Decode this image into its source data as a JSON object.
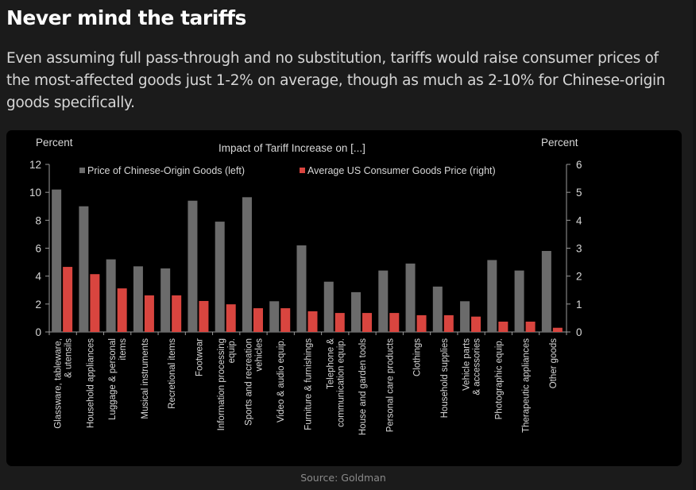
{
  "article": {
    "headline": "Never mind the tariffs",
    "dek": "Even assuming full pass-through and no substitution, tariffs would raise consumer prices of the most-affected goods just 1-2% on average, though as much as 2-10% for Chinese-origin goods specifically.",
    "source": "Source: Goldman"
  },
  "colors": {
    "page_bg": "#1b1b1b",
    "panel_bg": "#000000",
    "gray_series": "#6b6b6b",
    "red_series": "#d9453f",
    "axis_text": "#d8d8d8"
  },
  "chart_data": {
    "type": "bar",
    "title": "Impact of Tariff Increase on [...]",
    "ylabel_left": "Percent",
    "ylabel_right": "Percent",
    "ylim_left": [
      0,
      12
    ],
    "ylim_right": [
      0,
      6
    ],
    "yticks_left": [
      0,
      2,
      4,
      6,
      8,
      10,
      12
    ],
    "yticks_right": [
      0,
      1,
      2,
      3,
      4,
      5,
      6
    ],
    "grid": false,
    "legend_position": "top",
    "categories": [
      [
        "Glassware, tableware,",
        "& utensils"
      ],
      [
        "Household appliances"
      ],
      [
        "Luggage & personal",
        "items"
      ],
      [
        "Musical instruments"
      ],
      [
        "Recretional items"
      ],
      [
        "Footwear"
      ],
      [
        "Information processing",
        "equip."
      ],
      [
        "Sports and recreation",
        "vehicles"
      ],
      [
        "Video & audio equip."
      ],
      [
        "Furniture & furnishings"
      ],
      [
        "Telephone &",
        "communication equip."
      ],
      [
        "House and garden tools"
      ],
      [
        "Personal care products"
      ],
      [
        "Clothings"
      ],
      [
        "Household supplies"
      ],
      [
        "Vehicle parts",
        "& accessories"
      ],
      [
        "Photographic equip."
      ],
      [
        "Therapeutic appliances"
      ],
      [
        "Other goods"
      ]
    ],
    "series": [
      {
        "name": "Price of Chinese-Origin Goods (left)",
        "axis": "left",
        "color": "#6b6b6b",
        "values": [
          10.2,
          9.0,
          5.2,
          4.7,
          4.55,
          9.4,
          7.9,
          9.65,
          2.2,
          6.2,
          3.6,
          2.85,
          4.4,
          4.9,
          3.25,
          2.2,
          5.15,
          4.4,
          5.8
        ]
      },
      {
        "name": "Average US Consumer Goods Price (right)",
        "axis": "right",
        "color": "#d9453f",
        "values": [
          2.33,
          2.07,
          1.56,
          1.31,
          1.31,
          1.11,
          0.99,
          0.85,
          0.85,
          0.74,
          0.68,
          0.68,
          0.68,
          0.6,
          0.6,
          0.55,
          0.37,
          0.37,
          0.15
        ]
      }
    ]
  }
}
